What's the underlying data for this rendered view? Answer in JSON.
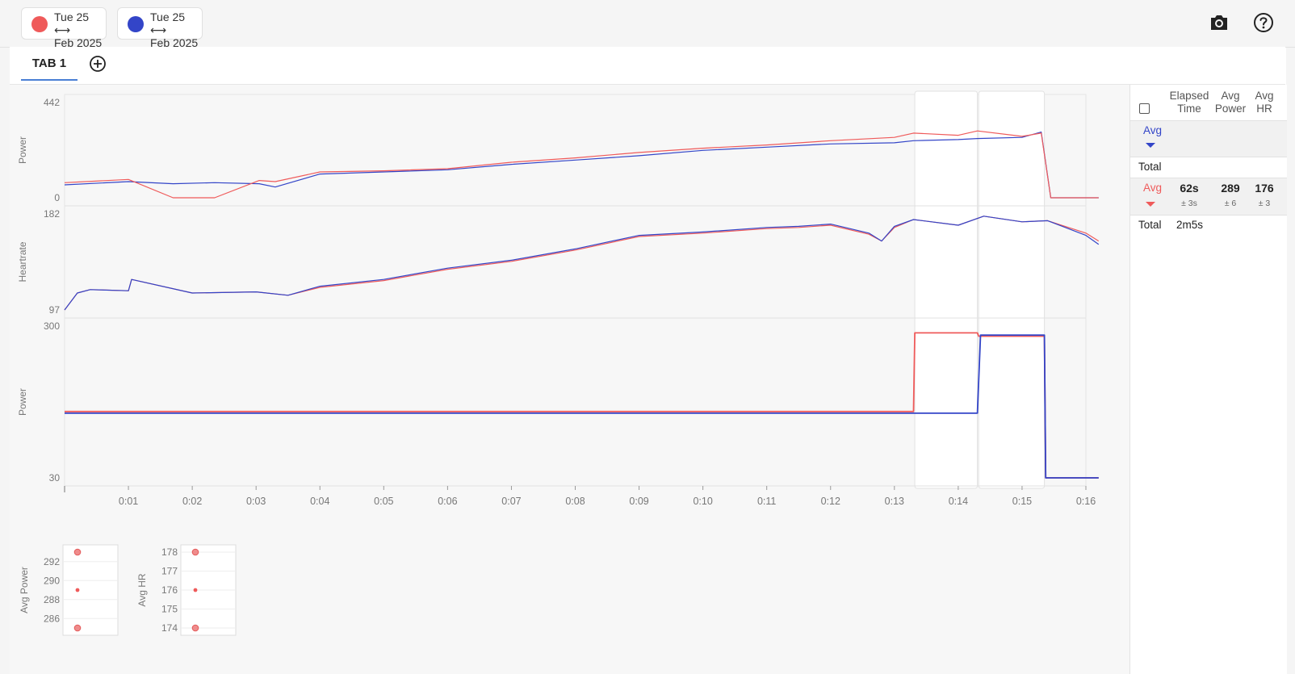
{
  "colors": {
    "red": "#ef5a5a",
    "blue": "#3345c8",
    "accent": "#4a7fd4",
    "axis_text": "#777777",
    "grid": "#e3e3e3"
  },
  "header": {
    "comparisons": [
      {
        "date_line1": "Tue 25",
        "date_line2": "Feb 2025",
        "color": "#ef5a5a",
        "swap_icon": "left-right-arrow-icon"
      },
      {
        "date_line1": "Tue 25",
        "date_line2": "Feb 2025",
        "color": "#3345c8",
        "swap_icon": "left-right-arrow-icon"
      }
    ],
    "icons": [
      "camera-icon",
      "help-icon"
    ]
  },
  "tabs": {
    "items": [
      {
        "label": "TAB 1",
        "active": true
      }
    ],
    "add_icon": "add-circle-icon"
  },
  "chart_data": [
    {
      "type": "line",
      "ylabel": "Power",
      "ylim": [
        0,
        442
      ],
      "yticks": [
        "442",
        "0"
      ],
      "x_unit": "minutes",
      "series": [
        {
          "color": "#ef5a5a",
          "x": [
            0,
            1,
            1.7,
            2.35,
            3.05,
            3.3,
            4,
            5,
            6,
            7,
            8,
            9,
            10,
            11,
            12,
            13,
            13.3,
            14,
            14.3,
            15,
            15.3,
            15.45,
            16.2
          ],
          "values": [
            70,
            85,
            0,
            0,
            80,
            75,
            120,
            125,
            135,
            165,
            185,
            210,
            230,
            245,
            265,
            280,
            300,
            290,
            310,
            285,
            300,
            0,
            0
          ]
        },
        {
          "color": "#3345c8",
          "x": [
            0,
            1,
            1.7,
            2.35,
            3.05,
            3.3,
            4,
            5,
            6,
            7,
            8,
            9,
            10,
            11,
            12,
            13,
            13.3,
            14,
            14.3,
            15,
            15.3,
            15.45,
            16.2
          ],
          "values": [
            60,
            75,
            65,
            70,
            65,
            50,
            110,
            120,
            130,
            155,
            175,
            195,
            220,
            235,
            250,
            255,
            265,
            270,
            275,
            280,
            305,
            0,
            0
          ]
        }
      ]
    },
    {
      "type": "line",
      "ylabel": "Heartrate",
      "ylim": [
        97,
        182
      ],
      "yticks": [
        "182",
        "97"
      ],
      "x_unit": "minutes",
      "series": [
        {
          "color": "#ef5a5a",
          "x": [
            0,
            0.2,
            0.4,
            1,
            1.05,
            2,
            3,
            3.5,
            4,
            5,
            6,
            7,
            8,
            9,
            10,
            11,
            11.5,
            12,
            12.6,
            12.8,
            13,
            13.3,
            14,
            14.4,
            15,
            15.4,
            16,
            16.2
          ],
          "values": [
            97,
            112,
            115,
            114,
            124,
            112,
            113,
            110,
            117,
            123,
            133,
            140,
            150,
            162,
            165,
            169,
            170,
            172,
            164,
            158,
            170,
            177,
            172,
            180,
            175,
            176,
            165,
            158
          ]
        },
        {
          "color": "#3345c8",
          "x": [
            0,
            0.2,
            0.4,
            1,
            1.05,
            2,
            3,
            3.5,
            4,
            5,
            6,
            7,
            8,
            9,
            10,
            11,
            11.5,
            12,
            12.6,
            12.8,
            13,
            13.3,
            14,
            14.4,
            15,
            15.4,
            16,
            16.2
          ],
          "values": [
            97,
            112,
            115,
            114,
            124,
            112,
            113,
            110,
            118,
            124,
            134,
            141,
            151,
            163,
            166,
            170,
            171,
            173,
            165,
            158,
            171,
            177,
            172,
            180,
            175,
            176,
            163,
            155
          ]
        }
      ]
    },
    {
      "type": "line",
      "ylabel": "Power",
      "ylim": [
        30,
        300
      ],
      "yticks": [
        "300",
        "30"
      ],
      "x_unit": "minutes",
      "series": [
        {
          "color": "#ef5a5a",
          "x": [
            0,
            13.3,
            13.32,
            14.3,
            14.32,
            15.35,
            15.37,
            16.2
          ],
          "values": [
            148,
            148,
            288,
            288,
            282,
            282,
            30,
            30
          ]
        },
        {
          "color": "#3345c8",
          "x": [
            0,
            14.3,
            14.35,
            15.35,
            15.37,
            16.2
          ],
          "values": [
            145,
            145,
            284,
            284,
            30,
            30
          ]
        }
      ]
    },
    {
      "type": "scatter",
      "ylabel": "Avg Power",
      "ylim": [
        285,
        293
      ],
      "yticks": [
        "292",
        "290",
        "288",
        "286"
      ],
      "points": [
        {
          "x": 0,
          "y": 293,
          "size": "large"
        },
        {
          "x": 0,
          "y": 289,
          "size": "small"
        },
        {
          "x": 0,
          "y": 285,
          "size": "large"
        }
      ]
    },
    {
      "type": "scatter",
      "ylabel": "Avg HR",
      "ylim": [
        174,
        178
      ],
      "yticks": [
        "178",
        "177",
        "176",
        "175",
        "174"
      ],
      "points": [
        {
          "x": 0,
          "y": 178,
          "size": "large"
        },
        {
          "x": 0,
          "y": 176,
          "size": "small"
        },
        {
          "x": 0,
          "y": 174,
          "size": "large"
        }
      ]
    }
  ],
  "x_axis": {
    "ticks": [
      "0:01",
      "0:02",
      "0:03",
      "0:04",
      "0:05",
      "0:06",
      "0:07",
      "0:08",
      "0:09",
      "0:10",
      "0:11",
      "0:12",
      "0:13",
      "0:14",
      "0:15",
      "0:16"
    ]
  },
  "highlight_intervals_min": [
    [
      13.32,
      14.3
    ],
    [
      14.32,
      15.35
    ]
  ],
  "side_panel": {
    "columns": [
      "Elapsed Time",
      "Avg Power",
      "Avg HR"
    ],
    "columns_line1": [
      "Elapsed",
      "Avg",
      "Avg"
    ],
    "columns_line2": [
      "Time",
      "Power",
      "HR"
    ],
    "blue_group": {
      "label": "Avg",
      "total_label": "Total"
    },
    "red_group": {
      "label": "Avg",
      "elapsed": "62s",
      "elapsed_sub": "± 3s",
      "power": "289",
      "power_sub": "± 6",
      "hr": "176",
      "hr_sub": "± 3",
      "total_label": "Total",
      "total_value": "2m5s"
    }
  }
}
